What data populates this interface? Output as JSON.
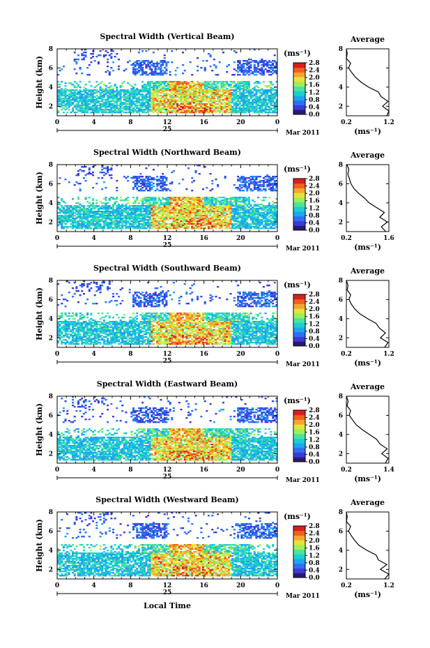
{
  "colors": {
    "background": "#ffffff",
    "axes": "#000000",
    "colormap": [
      "#2a1a6e",
      "#3b3bd6",
      "#2f6ff2",
      "#1fa5ee",
      "#1cd0d0",
      "#4be3a0",
      "#9cef5a",
      "#e4e43a",
      "#f5a530",
      "#f0601f",
      "#d81e1e"
    ]
  },
  "chart_data": [
    {
      "type": "heatmap",
      "title": "Spectral Width (Vertical Beam)",
      "ylabel": "Height (km)",
      "xlabel": "",
      "xticks": [
        "0",
        "4",
        "8",
        "12",
        "16",
        "20",
        "0"
      ],
      "xlim": [
        0,
        24
      ],
      "yticks": [
        "2",
        "4",
        "6",
        "8"
      ],
      "ylim": [
        1,
        8
      ],
      "date_label": "25",
      "month_label": "Mar 2011",
      "colorbar": {
        "unit": "(ms⁻¹)",
        "ticks": [
          "0.0",
          "0.4",
          "0.8",
          "1.2",
          "1.6",
          "2.0",
          "2.4",
          "2.8"
        ],
        "range": [
          0,
          2.8
        ]
      },
      "average_profile": {
        "title": "Average",
        "xlabel": "(ms⁻¹)",
        "xticks": [
          "0.2",
          "1.2"
        ],
        "xlim": [
          0.2,
          1.2
        ],
        "yticks": [
          "2",
          "4",
          "6",
          "8"
        ],
        "ylim": [
          1,
          8
        ],
        "heights": [
          1,
          1.5,
          2,
          2.5,
          3,
          3.5,
          4,
          4.5,
          5,
          5.5,
          6,
          6.5,
          7,
          7.5,
          8
        ],
        "values": [
          1.15,
          1.2,
          1.05,
          1.18,
          1.02,
          0.95,
          0.72,
          0.55,
          0.42,
          0.33,
          0.25,
          0.3,
          0.2,
          0.22,
          0.2
        ]
      }
    },
    {
      "type": "heatmap",
      "title": "Spectral Width (Northward Beam)",
      "ylabel": "Height (km)",
      "xlabel": "",
      "xticks": [
        "0",
        "4",
        "8",
        "12",
        "16",
        "20",
        "0"
      ],
      "xlim": [
        0,
        24
      ],
      "yticks": [
        "2",
        "4",
        "6",
        "8"
      ],
      "ylim": [
        1,
        8
      ],
      "date_label": "25",
      "month_label": "Mar 2011",
      "colorbar": {
        "unit": "(ms⁻¹)",
        "ticks": [
          "0.0",
          "0.4",
          "0.8",
          "1.2",
          "1.6",
          "2.0",
          "2.4",
          "2.8"
        ],
        "range": [
          0,
          2.8
        ]
      },
      "average_profile": {
        "title": "Average",
        "xlabel": "(ms⁻¹)",
        "xticks": [
          "0.2",
          "1.6"
        ],
        "xlim": [
          0.2,
          1.6
        ],
        "yticks": [
          "2",
          "4",
          "6",
          "8"
        ],
        "ylim": [
          1,
          8
        ],
        "heights": [
          1,
          1.5,
          2,
          2.5,
          3,
          3.5,
          4,
          4.5,
          5,
          5.5,
          6,
          6.5,
          7,
          7.5,
          8
        ],
        "values": [
          1.5,
          1.35,
          1.55,
          1.3,
          1.45,
          1.2,
          0.95,
          0.8,
          0.6,
          0.45,
          0.35,
          0.3,
          0.25,
          0.28,
          0.22
        ]
      }
    },
    {
      "type": "heatmap",
      "title": "Spectral Width (Southward Beam)",
      "ylabel": "Height (km)",
      "xlabel": "",
      "xticks": [
        "0",
        "4",
        "8",
        "12",
        "16",
        "20",
        "0"
      ],
      "xlim": [
        0,
        24
      ],
      "yticks": [
        "2",
        "4",
        "6",
        "8"
      ],
      "ylim": [
        1,
        8
      ],
      "date_label": "25",
      "month_label": "Mar 2011",
      "colorbar": {
        "unit": "(ms⁻¹)",
        "ticks": [
          "0.0",
          "0.4",
          "0.8",
          "1.2",
          "1.6",
          "2.0",
          "2.4",
          "2.8"
        ],
        "range": [
          0,
          2.8
        ]
      },
      "average_profile": {
        "title": "Average",
        "xlabel": "(ms⁻¹)",
        "xticks": [
          "0.2",
          "1.2"
        ],
        "xlim": [
          0.2,
          1.2
        ],
        "yticks": [
          "2",
          "4",
          "6",
          "8"
        ],
        "ylim": [
          1,
          8
        ],
        "heights": [
          1,
          1.5,
          2,
          2.5,
          3,
          3.5,
          4,
          4.5,
          5,
          5.5,
          6,
          6.5,
          7,
          7.5,
          8
        ],
        "values": [
          1.1,
          1.18,
          1.0,
          1.12,
          0.98,
          0.9,
          0.7,
          0.52,
          0.4,
          0.32,
          0.26,
          0.3,
          0.22,
          0.24,
          0.2
        ]
      }
    },
    {
      "type": "heatmap",
      "title": "Spectral Width (Eastward Beam)",
      "ylabel": "Height (km)",
      "xlabel": "",
      "xticks": [
        "0",
        "4",
        "8",
        "12",
        "16",
        "20",
        "0"
      ],
      "xlim": [
        0,
        24
      ],
      "yticks": [
        "2",
        "4",
        "6",
        "8"
      ],
      "ylim": [
        1,
        8
      ],
      "date_label": "25",
      "month_label": "Mar 2011",
      "colorbar": {
        "unit": "(ms⁻¹)",
        "ticks": [
          "0.0",
          "0.4",
          "0.8",
          "1.2",
          "1.6",
          "2.0",
          "2.4",
          "2.8"
        ],
        "range": [
          0,
          2.8
        ]
      },
      "average_profile": {
        "title": "Average",
        "xlabel": "(ms⁻¹)",
        "xticks": [
          "0.2",
          "1.4"
        ],
        "xlim": [
          0.2,
          1.4
        ],
        "yticks": [
          "2",
          "4",
          "6",
          "8"
        ],
        "ylim": [
          1,
          8
        ],
        "heights": [
          1,
          1.5,
          2,
          2.5,
          3,
          3.5,
          4,
          4.5,
          5,
          5.5,
          6,
          6.5,
          7,
          7.5,
          8
        ],
        "values": [
          1.3,
          1.38,
          1.2,
          1.35,
          1.15,
          1.05,
          0.85,
          0.65,
          0.48,
          0.38,
          0.28,
          0.32,
          0.22,
          0.25,
          0.2
        ]
      }
    },
    {
      "type": "heatmap",
      "title": "Spectral Width (Westward Beam)",
      "ylabel": "Height (km)",
      "xlabel": "Local Time",
      "xticks": [
        "0",
        "4",
        "8",
        "12",
        "16",
        "20",
        "0"
      ],
      "xlim": [
        0,
        24
      ],
      "yticks": [
        "2",
        "4",
        "6",
        "8"
      ],
      "ylim": [
        1,
        8
      ],
      "date_label": "25",
      "month_label": "Mar 2011",
      "colorbar": {
        "unit": "(ms⁻¹)",
        "ticks": [
          "0.0",
          "0.4",
          "0.8",
          "1.2",
          "1.6",
          "2.0",
          "2.4",
          "2.8"
        ],
        "range": [
          0,
          2.8
        ]
      },
      "average_profile": {
        "title": "Average",
        "xlabel": "(ms⁻¹)",
        "xticks": [
          "0.2",
          "1.2"
        ],
        "xlim": [
          0.2,
          1.2
        ],
        "yticks": [
          "2",
          "4",
          "6",
          "8"
        ],
        "ylim": [
          1,
          8
        ],
        "heights": [
          1,
          1.5,
          2,
          2.5,
          3,
          3.5,
          4,
          4.5,
          5,
          5.5,
          6,
          6.5,
          7,
          7.5,
          8
        ],
        "values": [
          1.1,
          1.2,
          1.0,
          1.15,
          0.95,
          0.9,
          0.68,
          0.5,
          0.4,
          0.32,
          0.25,
          0.3,
          0.2,
          0.22,
          0.2
        ]
      }
    }
  ]
}
